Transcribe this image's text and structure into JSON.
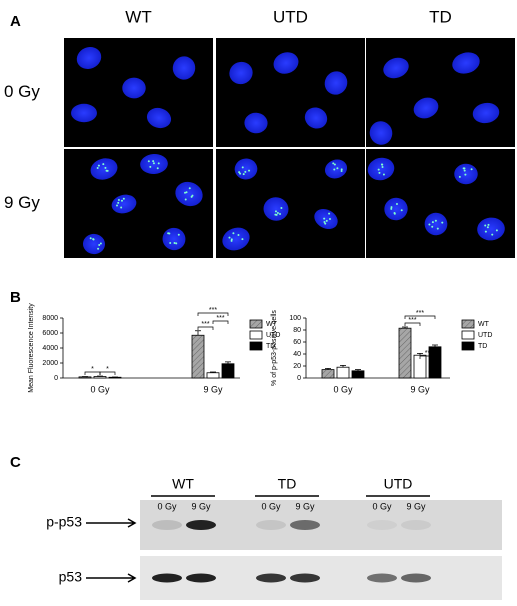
{
  "panel_a": {
    "label": "A",
    "columns": [
      "WT",
      "UTD",
      "TD"
    ],
    "rows": [
      "0 Gy",
      "9 Gy"
    ]
  },
  "panel_b": {
    "label": "B"
  },
  "chart_data": [
    {
      "type": "bar",
      "y_label": "Mean Fluorescence Intensity",
      "categories": [
        "0 Gy",
        "9 Gy"
      ],
      "series": [
        {
          "name": "WT",
          "color": "#a6a6a6",
          "pattern": "hatch",
          "values": [
            150,
            5700
          ],
          "errors": [
            40,
            600
          ]
        },
        {
          "name": "UTD",
          "color": "#ffffff",
          "values": [
            200,
            700
          ],
          "errors": [
            60,
            100
          ]
        },
        {
          "name": "TD",
          "color": "#000000",
          "values": [
            100,
            1900
          ],
          "errors": [
            30,
            250
          ]
        }
      ],
      "ylim": [
        0,
        8000
      ],
      "yticks": [
        0,
        2000,
        4000,
        6000,
        8000
      ],
      "annotations": [
        "*",
        "*",
        "***",
        "***",
        "***"
      ]
    },
    {
      "type": "bar",
      "y_label": "% of p-p53-positive cells",
      "categories": [
        "0 Gy",
        "9 Gy"
      ],
      "series": [
        {
          "name": "WT",
          "color": "#a6a6a6",
          "pattern": "hatch",
          "values": [
            14,
            83
          ],
          "errors": [
            2,
            2
          ]
        },
        {
          "name": "UTD",
          "color": "#ffffff",
          "values": [
            18,
            38
          ],
          "errors": [
            3,
            3
          ]
        },
        {
          "name": "TD",
          "color": "#000000",
          "values": [
            12,
            52
          ],
          "errors": [
            2,
            3
          ]
        }
      ],
      "ylim": [
        0,
        100
      ],
      "yticks": [
        0,
        20,
        40,
        60,
        80,
        100
      ],
      "annotations": [
        "***",
        "***",
        "**"
      ]
    }
  ],
  "panel_c": {
    "label": "C",
    "groups": [
      "WT",
      "TD",
      "UTD"
    ],
    "lanes": [
      "0 Gy",
      "9 Gy"
    ],
    "bands": [
      "p-p53",
      "p53"
    ]
  }
}
